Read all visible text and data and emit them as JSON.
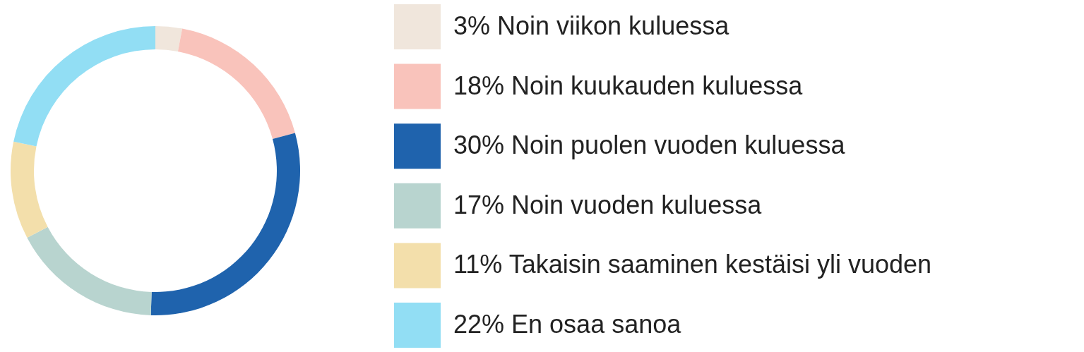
{
  "chart_data": {
    "type": "donut",
    "categories": [
      "Noin viikon kuluessa",
      "Noin kuukauden kuluessa",
      "Noin puolen vuoden kuluessa",
      "Noin vuoden kuluessa",
      "Takaisin saaminen kestäisi yli vuoden",
      "En osaa sanoa"
    ],
    "values": [
      3,
      18,
      30,
      17,
      11,
      22
    ],
    "value_labels": [
      "3%",
      "18%",
      "30%",
      "17%",
      "11%",
      "22%"
    ],
    "colors": [
      "#f0e6dc",
      "#f9c3bb",
      "#1f63ad",
      "#b8d4cf",
      "#f3dfab",
      "#92def4"
    ],
    "legend": "right"
  }
}
